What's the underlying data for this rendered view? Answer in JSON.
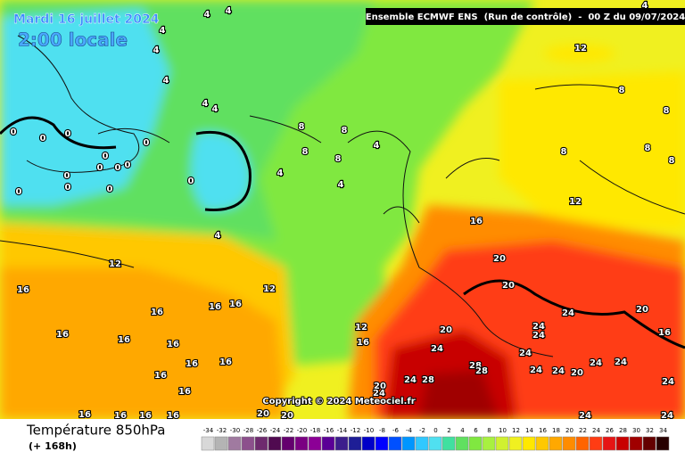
{
  "header": {
    "date": "Mardi 16 juillet 2024",
    "local_time": "2:00 locale",
    "run_info": "Ensemble ECMWF ENS  (Run de contrôle)  -  00 Z du 09/07/2024"
  },
  "map": {
    "copyright": "Copyright © 2024 Meteociel.fr",
    "labels": [
      4,
      4,
      4,
      4,
      4,
      4,
      4,
      4,
      4,
      4,
      4,
      4,
      0,
      0,
      0,
      0,
      0,
      0,
      0,
      0,
      0,
      0,
      0,
      0,
      0,
      8,
      8,
      8,
      8,
      8,
      8,
      8,
      8,
      8,
      12,
      12,
      12,
      12,
      12,
      16,
      16,
      16,
      16,
      16,
      16,
      16,
      16,
      16,
      16,
      16,
      16,
      16,
      16,
      16,
      16,
      16,
      16,
      20,
      20,
      20,
      20,
      20,
      20,
      20,
      20,
      24,
      24,
      24,
      24,
      24,
      24,
      24,
      24,
      24,
      24,
      24,
      24,
      24,
      24,
      28,
      28,
      28
    ]
  },
  "footer": {
    "variable": "Température 850hPa",
    "lead_time": "(+ 168h)",
    "legend": {
      "values": [
        -34,
        -32,
        -30,
        -28,
        -26,
        -24,
        -22,
        -20,
        -18,
        -16,
        -14,
        -12,
        -10,
        -8,
        -6,
        -4,
        -2,
        0,
        2,
        4,
        6,
        8,
        10,
        12,
        14,
        16,
        18,
        20,
        22,
        24,
        26,
        28,
        30,
        32,
        34
      ],
      "colors": [
        "#d8d8d8",
        "#b4b4b4",
        "#a07aa0",
        "#8c508c",
        "#6e2a6e",
        "#500a50",
        "#64006e",
        "#7a0082",
        "#8c0096",
        "#5a0096",
        "#3c1e8c",
        "#1e1e96",
        "#0000c8",
        "#0000ff",
        "#0050ff",
        "#0096ff",
        "#30c8ff",
        "#50e0f0",
        "#40e0a0",
        "#60e060",
        "#80e840",
        "#a8f040",
        "#d0f030",
        "#f0f020",
        "#ffe800",
        "#ffc800",
        "#ffa800",
        "#ff8c00",
        "#ff6400",
        "#ff3c14",
        "#e61414",
        "#c80000",
        "#a00000",
        "#640000",
        "#280000"
      ]
    }
  }
}
